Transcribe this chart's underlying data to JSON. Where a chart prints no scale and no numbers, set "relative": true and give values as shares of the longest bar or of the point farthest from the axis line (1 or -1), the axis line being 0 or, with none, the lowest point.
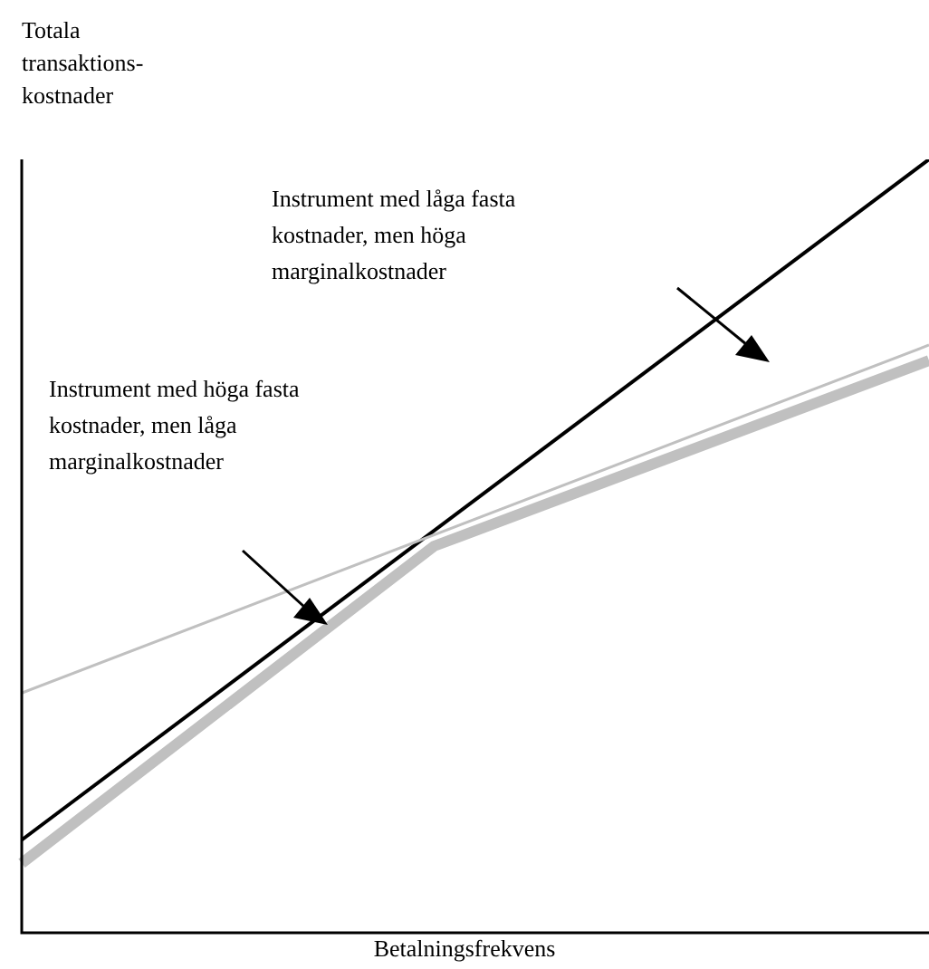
{
  "chart_data": {
    "type": "line",
    "relative": true,
    "marker": "none",
    "xlabel": "Betalningsfrekvens",
    "ylabel": "Totala transaktions-kostnader",
    "annotations": [
      "Instrument med låga fasta kostnader, men höga marginalkostnader",
      "Instrument med höga fasta kostnader, men låga marginalkostnader"
    ],
    "categories": [
      null,
      null,
      null,
      null,
      null,
      null,
      null,
      null,
      null,
      null,
      null,
      null
    ],
    "series": [
      {
        "color": "#c0c0c0",
        "values": [
          0.31,
          null,
          null,
          null,
          null,
          null,
          null,
          null,
          null,
          null,
          null,
          0.76
        ]
      },
      {
        "color": "#c0c0c0",
        "values": [
          0.09,
          null,
          null,
          null,
          null,
          0.5,
          null,
          null,
          null,
          null,
          null,
          0.74
        ]
      },
      {
        "color": "#000000",
        "values": [
          0.12,
          null,
          null,
          null,
          null,
          null,
          null,
          null,
          null,
          null,
          null,
          1
        ]
      }
    ]
  }
}
